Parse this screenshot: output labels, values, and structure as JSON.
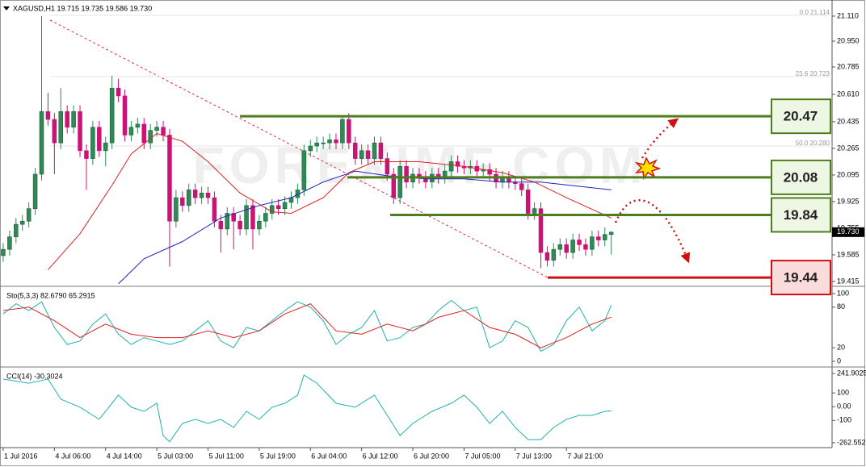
{
  "chart_data": [
    {
      "type": "candlestick",
      "title": "XAGUSD,H1  19.715 19.735 19.586 19.730",
      "watermark": "FOREXIMF.COM",
      "fib_labels": [
        "0.0 21.114",
        "23.6 20.723",
        "50.0 20.280"
      ],
      "bull_color": "#2e8b57",
      "bear_color": "#cc1177",
      "xlim": [
        -0.5,
        129.5
      ],
      "ylim": [
        19.389,
        21.187
      ],
      "yticks": [
        {
          "value": 21.11,
          "label": "21.110"
        },
        {
          "value": 20.95,
          "label": "20.950"
        },
        20.785,
        {
          "value": 20.61,
          "label": "20.610"
        },
        20.435,
        20.265,
        20.095,
        19.925,
        19.755,
        19.585,
        19.415
      ],
      "xticks": [
        {
          "value": 0,
          "label": "1 Jul 2016"
        },
        {
          "value": 8,
          "label": "4 Jul 06:00"
        },
        {
          "value": 16,
          "label": "4 Jul 14:00"
        },
        {
          "value": 24,
          "label": "5 Jul 03:00"
        },
        {
          "value": 32,
          "label": "5 Jul 11:00"
        },
        {
          "value": 40,
          "label": "5 Jul 19:00"
        },
        {
          "value": 48,
          "label": "6 Jul 04:00"
        },
        {
          "value": 56,
          "label": "6 Jul 12:00"
        },
        {
          "value": 64,
          "label": "6 Jul 20:00"
        },
        {
          "value": 72,
          "label": "7 Jul 05:00"
        },
        {
          "value": 80,
          "label": "7 Jul 13:00"
        },
        {
          "value": 88,
          "label": "7 Jul 21:00"
        }
      ],
      "last_price": {
        "value": 19.73,
        "label": "19.730"
      },
      "levels": [
        {
          "value": 20.47,
          "color": "#4e7d1e",
          "fill": "#eef6e4"
        },
        {
          "value": 20.08,
          "color": "#4e7d1e",
          "fill": "#eef6e4"
        },
        {
          "value": 19.84,
          "color": "#4e7d1e",
          "fill": "#eef6e4"
        },
        {
          "value": 19.44,
          "color": "#d01010",
          "fill": "#fbdcdc"
        }
      ],
      "ohlc": [
        [
          19.58,
          19.66,
          19.54,
          19.62
        ],
        [
          19.62,
          19.74,
          19.58,
          19.7
        ],
        [
          19.7,
          19.82,
          19.66,
          19.78
        ],
        [
          19.78,
          19.84,
          19.74,
          19.8
        ],
        [
          19.8,
          19.92,
          19.76,
          19.88
        ],
        [
          19.88,
          20.14,
          19.84,
          20.1
        ],
        [
          20.1,
          21.11,
          20.06,
          20.5
        ],
        [
          20.5,
          20.62,
          20.41,
          20.45
        ],
        [
          20.45,
          20.49,
          20.1,
          20.3
        ],
        [
          20.3,
          20.65,
          20.26,
          20.5
        ],
        [
          20.5,
          20.54,
          20.36,
          20.4
        ],
        [
          20.4,
          20.54,
          20.36,
          20.5
        ],
        [
          20.5,
          20.54,
          20.21,
          20.25
        ],
        [
          20.25,
          20.29,
          20.0,
          20.2
        ],
        [
          20.2,
          20.44,
          20.16,
          20.4
        ],
        [
          20.4,
          20.44,
          20.21,
          20.25
        ],
        [
          20.25,
          20.34,
          20.15,
          20.3
        ],
        [
          20.3,
          20.73,
          20.26,
          20.65
        ],
        [
          20.65,
          20.71,
          20.56,
          20.6
        ],
        [
          20.6,
          20.64,
          20.31,
          20.35
        ],
        [
          20.35,
          20.44,
          20.31,
          20.4
        ],
        [
          20.4,
          20.46,
          20.36,
          20.42
        ],
        [
          20.42,
          20.46,
          20.26,
          20.3
        ],
        [
          20.3,
          20.42,
          20.26,
          20.38
        ],
        [
          20.38,
          20.44,
          20.34,
          20.4
        ],
        [
          20.4,
          20.44,
          20.31,
          20.35
        ],
        [
          20.35,
          20.39,
          19.51,
          19.8
        ],
        [
          19.8,
          20.0,
          19.76,
          19.95
        ],
        [
          19.95,
          19.99,
          19.86,
          19.9
        ],
        [
          19.9,
          20.04,
          19.86,
          20.0
        ],
        [
          20.0,
          20.04,
          19.91,
          19.95
        ],
        [
          19.95,
          20.02,
          19.91,
          19.98
        ],
        [
          19.98,
          20.02,
          19.91,
          19.95
        ],
        [
          19.95,
          19.99,
          19.76,
          19.8
        ],
        [
          19.8,
          19.84,
          19.6,
          19.75
        ],
        [
          19.75,
          19.89,
          19.71,
          19.85
        ],
        [
          19.85,
          19.89,
          19.62,
          19.8
        ],
        [
          19.8,
          19.84,
          19.71,
          19.75
        ],
        [
          19.75,
          19.94,
          19.71,
          19.9
        ],
        [
          19.9,
          19.94,
          19.62,
          19.75
        ],
        [
          19.75,
          19.84,
          19.71,
          19.8
        ],
        [
          19.8,
          19.89,
          19.76,
          19.85
        ],
        [
          19.85,
          19.94,
          19.81,
          19.9
        ],
        [
          19.9,
          19.94,
          19.84,
          19.88
        ],
        [
          19.88,
          19.96,
          19.84,
          19.92
        ],
        [
          19.92,
          19.99,
          19.88,
          19.95
        ],
        [
          19.95,
          20.04,
          19.91,
          20.0
        ],
        [
          20.0,
          20.29,
          19.96,
          20.25
        ],
        [
          20.25,
          20.32,
          20.21,
          20.28
        ],
        [
          20.28,
          20.34,
          20.24,
          20.3
        ],
        [
          20.3,
          20.34,
          20.26,
          20.3
        ],
        [
          20.3,
          20.36,
          20.26,
          20.32
        ],
        [
          20.32,
          20.36,
          20.26,
          20.3
        ],
        [
          20.3,
          20.47,
          20.26,
          20.45
        ],
        [
          20.45,
          20.49,
          20.26,
          20.3
        ],
        [
          20.3,
          20.34,
          20.16,
          20.2
        ],
        [
          20.2,
          20.29,
          20.16,
          20.25
        ],
        [
          20.25,
          20.29,
          20.16,
          20.2
        ],
        [
          20.2,
          20.34,
          20.16,
          20.3
        ],
        [
          20.3,
          20.34,
          20.16,
          20.2
        ],
        [
          20.2,
          20.24,
          20.06,
          20.1
        ],
        [
          20.1,
          20.14,
          19.91,
          19.95
        ],
        [
          19.95,
          20.19,
          19.91,
          20.15
        ],
        [
          20.15,
          20.19,
          20.01,
          20.05
        ],
        [
          20.05,
          20.14,
          20.01,
          20.1
        ],
        [
          20.1,
          20.14,
          20.04,
          20.08
        ],
        [
          20.08,
          20.12,
          20.01,
          20.05
        ],
        [
          20.05,
          20.14,
          20.01,
          20.1
        ],
        [
          20.1,
          20.14,
          20.04,
          20.08
        ],
        [
          20.08,
          20.16,
          20.04,
          20.12
        ],
        [
          20.12,
          20.22,
          20.08,
          20.18
        ],
        [
          20.18,
          20.22,
          20.11,
          20.15
        ],
        [
          20.15,
          20.19,
          20.1,
          20.14
        ],
        [
          20.14,
          20.19,
          20.1,
          20.15
        ],
        [
          20.15,
          20.19,
          20.08,
          20.12
        ],
        [
          20.12,
          20.17,
          20.08,
          20.13
        ],
        [
          20.13,
          20.17,
          20.06,
          20.1
        ],
        [
          20.1,
          20.14,
          20.01,
          20.05
        ],
        [
          20.05,
          20.12,
          20.01,
          20.08
        ],
        [
          20.08,
          20.12,
          20.01,
          20.05
        ],
        [
          20.05,
          20.09,
          20.0,
          20.04
        ],
        [
          20.04,
          20.08,
          19.96,
          20.0
        ],
        [
          20.0,
          20.04,
          19.81,
          19.85
        ],
        [
          19.85,
          19.92,
          19.81,
          19.88
        ],
        [
          19.88,
          19.92,
          19.5,
          19.6
        ],
        [
          19.6,
          19.64,
          19.51,
          19.55
        ],
        [
          19.55,
          19.66,
          19.51,
          19.62
        ],
        [
          19.62,
          19.69,
          19.58,
          19.65
        ],
        [
          19.65,
          19.69,
          19.56,
          19.6
        ],
        [
          19.6,
          19.72,
          19.56,
          19.68
        ],
        [
          19.68,
          19.72,
          19.61,
          19.65
        ],
        [
          19.65,
          19.69,
          19.58,
          19.62
        ],
        [
          19.62,
          19.74,
          19.58,
          19.7
        ],
        [
          19.7,
          19.74,
          19.64,
          19.68
        ],
        [
          19.68,
          19.76,
          19.64,
          19.715
        ],
        [
          19.715,
          19.735,
          19.586,
          19.73
        ]
      ],
      "overlays": [
        {
          "color": "#e02020",
          "x": [
            7,
            12,
            17,
            20,
            24,
            28,
            32,
            37,
            42,
            45,
            50,
            54,
            58,
            65,
            72,
            78,
            83,
            88,
            95
          ],
          "values": [
            19.49,
            19.72,
            20.03,
            20.23,
            20.36,
            20.31,
            20.18,
            19.98,
            19.86,
            19.85,
            19.95,
            20.11,
            20.18,
            20.18,
            20.15,
            20.11,
            20.05,
            19.95,
            19.82
          ]
        },
        {
          "color": "#2020c0",
          "x": [
            18,
            22,
            28,
            34,
            40,
            45,
            50,
            55,
            60,
            66,
            72,
            78,
            84,
            95
          ],
          "values": [
            19.4,
            19.56,
            19.67,
            19.82,
            19.9,
            19.95,
            20.05,
            20.12,
            20.09,
            20.07,
            20.07,
            20.05,
            20.05,
            20.0
          ]
        }
      ]
    },
    {
      "type": "line",
      "title": "Sto(5,3,3) 82.6790 65.2915",
      "xlim": [
        -0.5,
        129.5
      ],
      "ylim": [
        0,
        100
      ],
      "yticks": [
        100,
        80,
        20,
        0
      ],
      "series": [
        {
          "color": "#20b2aa",
          "x": [
            0,
            2,
            4,
            6,
            8,
            10,
            12,
            14,
            16,
            18,
            20,
            22,
            24,
            26,
            28,
            30,
            32,
            34,
            36,
            38,
            40,
            42,
            44,
            46,
            48,
            50,
            52,
            54,
            56,
            58,
            60,
            62,
            64,
            66,
            68,
            70,
            72,
            74,
            76,
            78,
            80,
            82,
            84,
            86,
            88,
            90,
            92,
            94,
            95
          ],
          "values": [
            70,
            85,
            75,
            88,
            50,
            25,
            30,
            55,
            70,
            40,
            25,
            35,
            30,
            25,
            30,
            45,
            60,
            30,
            20,
            50,
            45,
            60,
            75,
            88,
            80,
            60,
            25,
            40,
            50,
            75,
            30,
            35,
            50,
            55,
            75,
            90,
            75,
            80,
            20,
            30,
            60,
            50,
            15,
            25,
            60,
            80,
            45,
            60,
            82.679
          ]
        },
        {
          "color": "#e02020",
          "x": [
            0,
            4,
            8,
            12,
            16,
            20,
            24,
            28,
            32,
            36,
            40,
            44,
            48,
            52,
            56,
            60,
            64,
            68,
            72,
            76,
            80,
            84,
            88,
            92,
            95
          ],
          "values": [
            75,
            80,
            60,
            35,
            55,
            40,
            35,
            35,
            45,
            35,
            45,
            70,
            85,
            45,
            40,
            55,
            45,
            65,
            75,
            50,
            40,
            20,
            35,
            55,
            65.2915
          ]
        }
      ]
    },
    {
      "type": "line",
      "title": "CCI(14) -30.3024",
      "xlim": [
        -0.5,
        129.5
      ],
      "ylim": [
        -262.552,
        241.9025
      ],
      "yticks": [
        241.9025,
        100,
        {
          "value": 0,
          "label": "0.00"
        },
        -100,
        -262.552
      ],
      "series": [
        {
          "color": "#20b2aa",
          "x": [
            0,
            4,
            7,
            9,
            12,
            15,
            18,
            20,
            22,
            24,
            25,
            26,
            28,
            30,
            32,
            34,
            36,
            38,
            40,
            42,
            44,
            46,
            47,
            49,
            52,
            55,
            58,
            60,
            62,
            64,
            67,
            70,
            72,
            74,
            76,
            78,
            80,
            82,
            84,
            86,
            88,
            90,
            92,
            94,
            95
          ],
          "values": [
            201,
            171,
            201,
            54,
            -4,
            -92,
            84,
            -4,
            -34,
            25,
            -210,
            -255,
            -122,
            -92,
            -122,
            -92,
            -151,
            -34,
            -92,
            -4,
            25,
            84,
            230,
            171,
            25,
            -4,
            84,
            -63,
            -210,
            -122,
            -34,
            25,
            84,
            -4,
            -122,
            -34,
            -151,
            -239,
            -239,
            -151,
            -92,
            -63,
            -63,
            -34,
            -30.3024
          ]
        }
      ]
    }
  ]
}
